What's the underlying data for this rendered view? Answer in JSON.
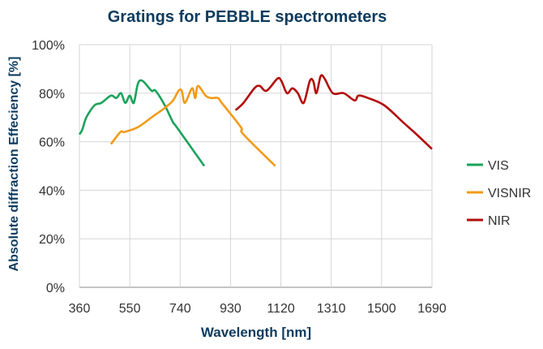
{
  "chart_data": {
    "type": "line",
    "title": "Gratings for PEBBLE spectrometers",
    "xlabel": "Wavelength [nm]",
    "ylabel": "Absolute diffraction Effeciency [%]",
    "xlim": [
      360,
      1690
    ],
    "ylim": [
      0,
      100
    ],
    "xticks": [
      360,
      550,
      740,
      930,
      1120,
      1310,
      1500,
      1690
    ],
    "yticks": [
      0,
      20,
      40,
      60,
      80,
      100
    ],
    "ytick_labels": [
      "0%",
      "20%",
      "40%",
      "60%",
      "80%",
      "100%"
    ],
    "grid": true,
    "legend_position": "right",
    "title_color": "#0d3b5e",
    "series": [
      {
        "name": "VIS",
        "color": "#1aa35a",
        "x": [
          360,
          371,
          386,
          417,
          443,
          479,
          499,
          517,
          533,
          550,
          565,
          581,
          599,
          632,
          647,
          682,
          713,
          727,
          831
        ],
        "y": [
          63,
          65,
          70,
          75,
          76,
          79,
          78,
          80,
          76,
          79,
          76,
          84,
          85,
          81,
          81,
          75,
          68,
          66,
          50
        ]
      },
      {
        "name": "VISNIR",
        "color": "#f29b16",
        "x": [
          479,
          515,
          530,
          581,
          632,
          683,
          713,
          734,
          746,
          758,
          785,
          797,
          807,
          836,
          856,
          882,
          897,
          969,
          979,
          1099
        ],
        "y": [
          59,
          64,
          64,
          66,
          70,
          74,
          77,
          81,
          81,
          76,
          82,
          78,
          83,
          79,
          78,
          78,
          76,
          66,
          63,
          50
        ]
      },
      {
        "name": "NIR",
        "color": "#b30c0c",
        "x": [
          949,
          979,
          1020,
          1040,
          1066,
          1107,
          1122,
          1143,
          1163,
          1184,
          1206,
          1229,
          1242,
          1254,
          1270,
          1285,
          1316,
          1357,
          1398,
          1413,
          1449,
          1510,
          1581,
          1632,
          1690
        ],
        "y": [
          73,
          76,
          82,
          83,
          81,
          86,
          85,
          80,
          82,
          80,
          76,
          85,
          85,
          80,
          87,
          86,
          80,
          80,
          77,
          79,
          78,
          75,
          68,
          63,
          57
        ]
      }
    ]
  }
}
